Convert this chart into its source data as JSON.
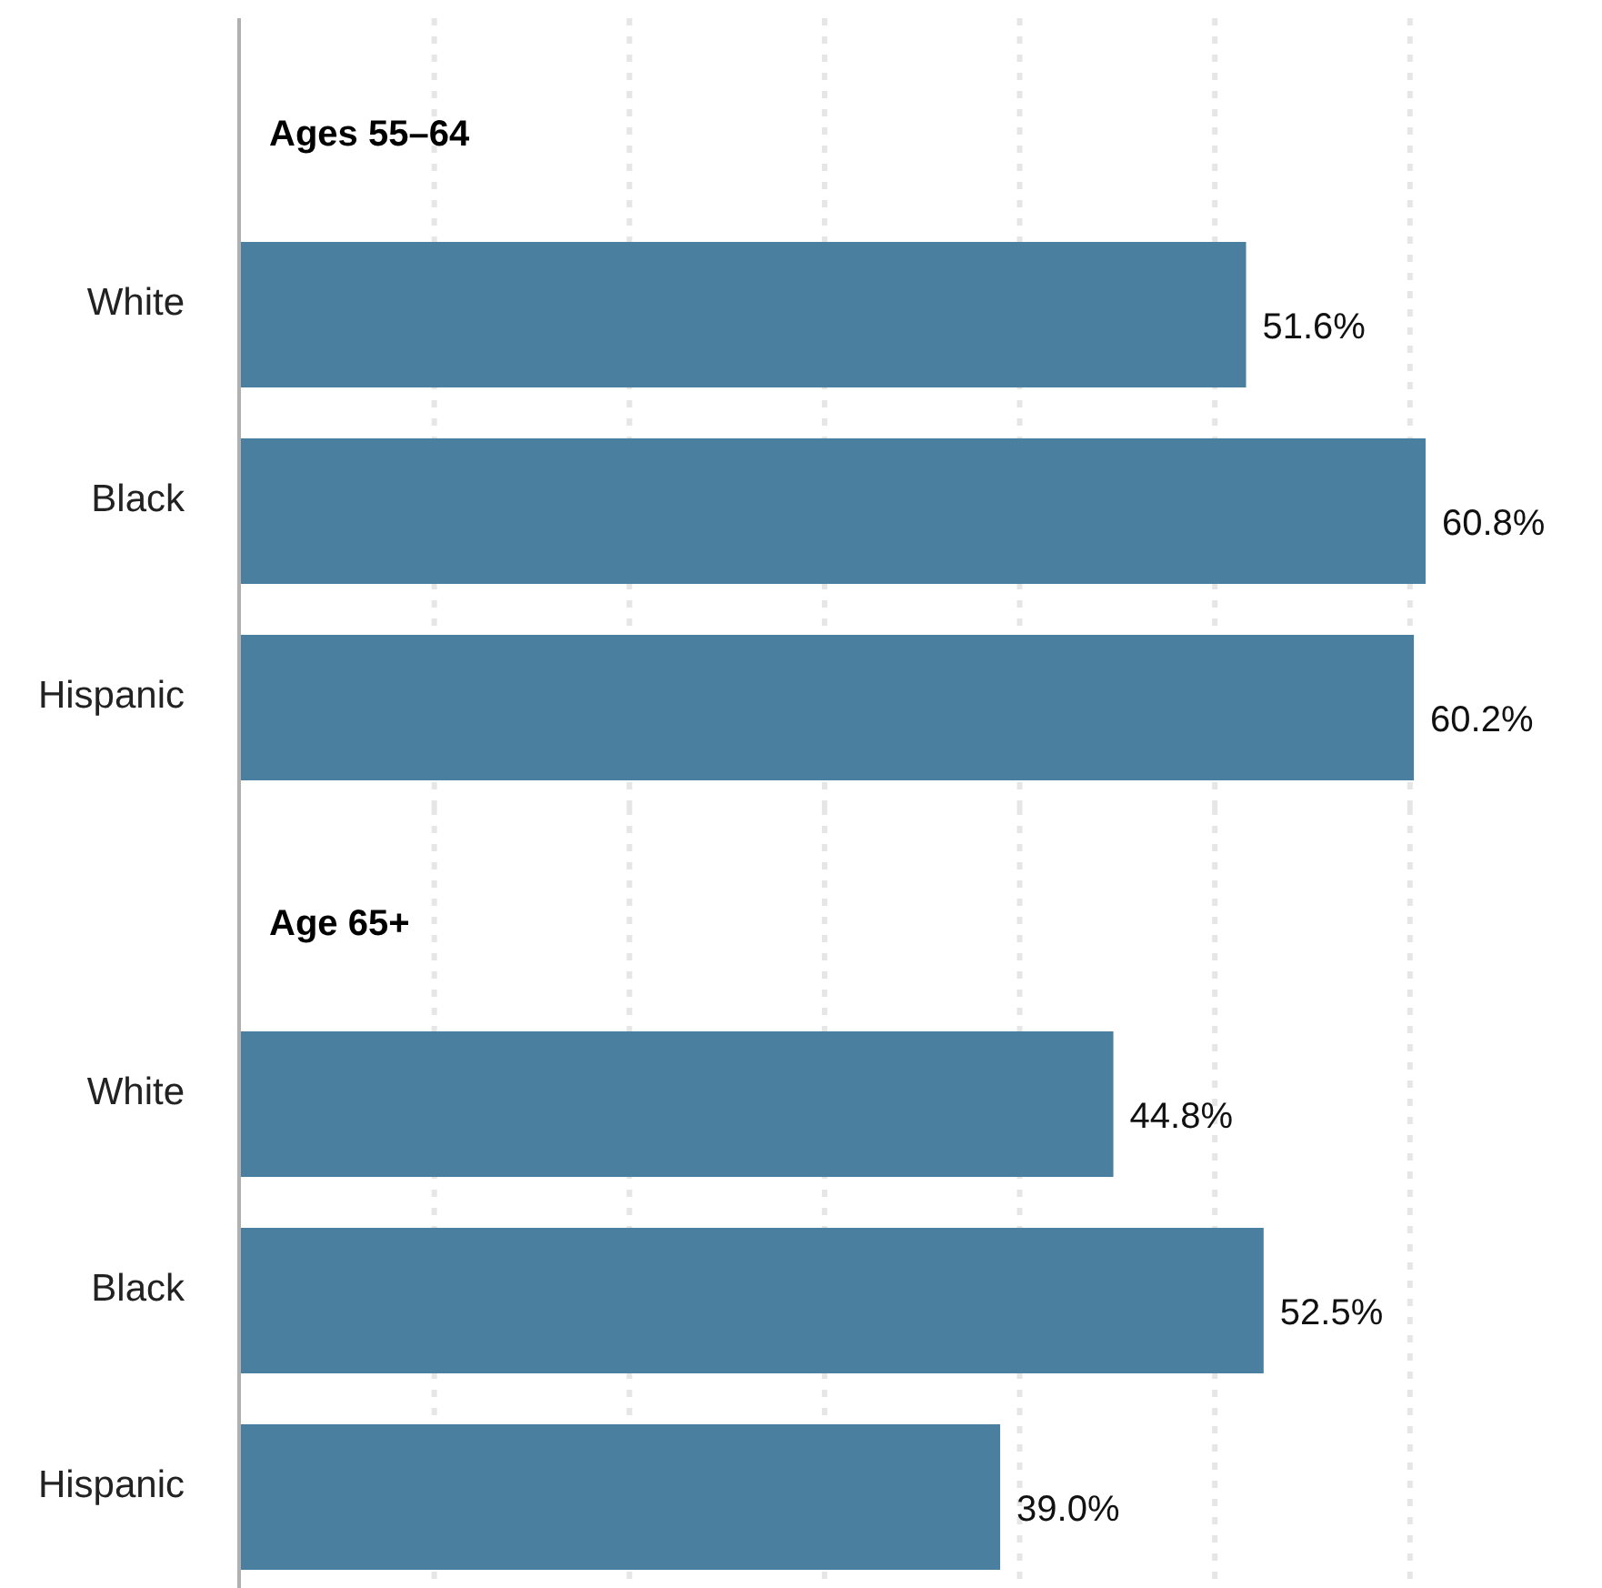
{
  "chart_data": [
    {
      "type": "bar",
      "orientation": "horizontal",
      "title": "Ages 55–64",
      "categories": [
        "White",
        "Black",
        "Hispanic"
      ],
      "values": [
        51.6,
        60.8,
        60.2
      ],
      "value_labels": [
        "51.6%",
        "60.8%",
        "60.2%"
      ],
      "color": "#4a7fa0",
      "xticks": [
        {
          "value": 10,
          "label": null
        },
        {
          "value": 20,
          "label": null
        },
        {
          "value": 30,
          "label": null
        },
        {
          "value": 40,
          "label": null
        },
        {
          "value": 50,
          "label": null
        },
        {
          "value": 60,
          "label": null
        }
      ],
      "grid": "x",
      "tick_labels": "y"
    },
    {
      "type": "bar",
      "orientation": "horizontal",
      "title": "Age 65+",
      "categories": [
        "White",
        "Black",
        "Hispanic"
      ],
      "values": [
        44.8,
        52.5,
        39.0
      ],
      "value_labels": [
        "44.8%",
        "52.5%",
        "39.0%"
      ],
      "color": "#4a7fa0",
      "xticks": [
        {
          "value": 10,
          "label": null
        },
        {
          "value": 20,
          "label": null
        },
        {
          "value": 30,
          "label": null
        },
        {
          "value": 40,
          "label": null
        },
        {
          "value": 50,
          "label": null
        },
        {
          "value": 60,
          "label": null
        }
      ],
      "grid": "x",
      "tick_labels": "y"
    }
  ]
}
